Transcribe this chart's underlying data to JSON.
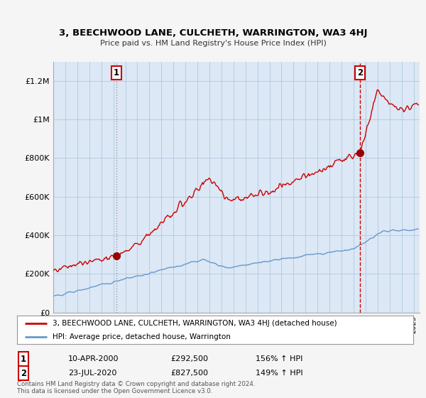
{
  "title": "3, BEECHWOOD LANE, CULCHETH, WARRINGTON, WA3 4HJ",
  "subtitle": "Price paid vs. HM Land Registry's House Price Index (HPI)",
  "ylabel_ticks": [
    "£0",
    "£200K",
    "£400K",
    "£600K",
    "£800K",
    "£1M",
    "£1.2M"
  ],
  "ytick_values": [
    0,
    200000,
    400000,
    600000,
    800000,
    1000000,
    1200000
  ],
  "ylim": [
    0,
    1300000
  ],
  "xlim_start": 1995.0,
  "xlim_end": 2025.5,
  "sale1_x": 2000.27,
  "sale1_y": 292500,
  "sale2_x": 2020.55,
  "sale2_y": 827500,
  "red_line_color": "#cc0000",
  "blue_line_color": "#6699cc",
  "background_color": "#f5f5f5",
  "plot_bg_color": "#dce8f5",
  "grid_color": "#b0c8e0",
  "legend_label_red": "3, BEECHWOOD LANE, CULCHETH, WARRINGTON, WA3 4HJ (detached house)",
  "legend_label_blue": "HPI: Average price, detached house, Warrington",
  "footer1": "Contains HM Land Registry data © Crown copyright and database right 2024.",
  "footer2": "This data is licensed under the Open Government Licence v3.0.",
  "table_row1": [
    "1",
    "10-APR-2000",
    "£292,500",
    "156% ↑ HPI"
  ],
  "table_row2": [
    "2",
    "23-JUL-2020",
    "£827,500",
    "149% ↑ HPI"
  ]
}
